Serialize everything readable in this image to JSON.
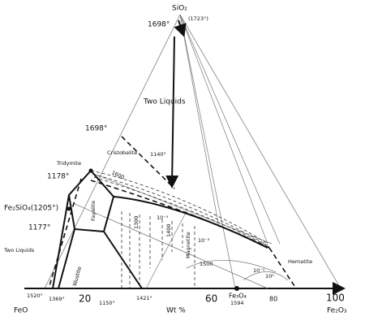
{
  "vertices": {
    "top": "SiO₂",
    "top_temp": "(1723°)",
    "left": "FeO",
    "right": "Fe₂O₃"
  },
  "axis": {
    "label": "Wt %",
    "ticks": [
      "20",
      "60",
      "80",
      "100"
    ]
  },
  "temperatures": [
    "1698°",
    "1698°",
    "1140°",
    "1178°",
    "Fe₂SiO₄(1205°)",
    "1177°",
    "1520°",
    "1369°",
    "1150°",
    "1421°",
    "1594"
  ],
  "phases": [
    "Two Liquids",
    "Cristobalite",
    "Tridymite",
    "Two Liquids",
    "Fayalite",
    "Wustite",
    "Magnetite",
    "Hematite",
    "Fe₃O₄"
  ],
  "isotherms": [
    "1600",
    "1300",
    "1400",
    "1500"
  ],
  "pressures": [
    "10⁻⁵",
    "10⁻³",
    "10⁻¹",
    "10⁰"
  ]
}
